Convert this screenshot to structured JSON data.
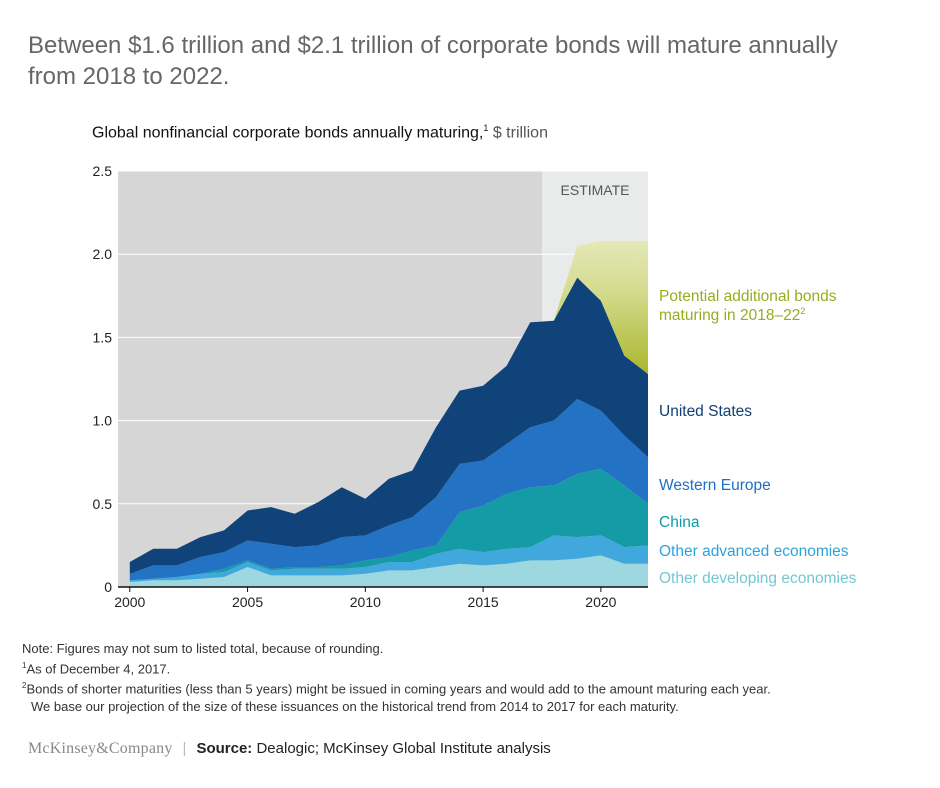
{
  "headline": "Between $1.6 trillion and $2.1 trillion of corporate bonds will mature annually from 2018 to 2022.",
  "chart_data": {
    "type": "area",
    "title": "Global nonfinancial corporate bonds annually maturing,",
    "title_sup": "1",
    "unit": "$ trillion",
    "xlim": [
      1999.5,
      2022
    ],
    "ylim": [
      0,
      2.5
    ],
    "x": [
      2000,
      2001,
      2002,
      2003,
      2004,
      2005,
      2006,
      2007,
      2008,
      2009,
      2010,
      2011,
      2012,
      2013,
      2014,
      2015,
      2016,
      2017,
      2018,
      2019,
      2020,
      2021,
      2022
    ],
    "y_ticks": [
      "0",
      "0.5",
      "1.0",
      "1.5",
      "2.0",
      "2.5"
    ],
    "x_ticks": [
      {
        "value": 2000,
        "label": "2000"
      },
      {
        "value": 2005,
        "label": "2005"
      },
      {
        "value": 2010,
        "label": "2010"
      },
      {
        "value": 2015,
        "label": "2015"
      },
      {
        "value": 2020,
        "label": "2020"
      }
    ],
    "estimate_region": {
      "start": 2017.5,
      "label": "ESTIMATE"
    },
    "series": [
      {
        "name": "Other developing economies",
        "color": "#9dd8e0",
        "label_color": "#74c6d3",
        "values": [
          0.03,
          0.04,
          0.04,
          0.05,
          0.06,
          0.12,
          0.07,
          0.07,
          0.07,
          0.07,
          0.08,
          0.1,
          0.1,
          0.12,
          0.14,
          0.13,
          0.14,
          0.16,
          0.16,
          0.17,
          0.19,
          0.14,
          0.14
        ]
      },
      {
        "name": "Other advanced economies",
        "color": "#41a8dd",
        "label_color": "#2ea3da",
        "values": [
          0.01,
          0.01,
          0.02,
          0.03,
          0.03,
          0.03,
          0.03,
          0.04,
          0.04,
          0.04,
          0.04,
          0.05,
          0.05,
          0.08,
          0.09,
          0.08,
          0.09,
          0.08,
          0.15,
          0.13,
          0.12,
          0.1,
          0.11
        ]
      },
      {
        "name": "China",
        "color": "#159ba5",
        "label_color": "#119aa5",
        "values": [
          0.0,
          0.0,
          0.0,
          0.0,
          0.02,
          0.01,
          0.01,
          0.01,
          0.01,
          0.02,
          0.04,
          0.03,
          0.07,
          0.05,
          0.22,
          0.28,
          0.33,
          0.36,
          0.3,
          0.38,
          0.4,
          0.37,
          0.25
        ]
      },
      {
        "name": "Western Europe",
        "color": "#2372c3",
        "label_color": "#1f6fc0",
        "values": [
          0.04,
          0.08,
          0.07,
          0.1,
          0.1,
          0.12,
          0.15,
          0.12,
          0.13,
          0.17,
          0.15,
          0.19,
          0.2,
          0.29,
          0.29,
          0.27,
          0.3,
          0.36,
          0.39,
          0.45,
          0.35,
          0.3,
          0.28
        ]
      },
      {
        "name": "United States",
        "color": "#0f4379",
        "label_color": "#0f3f73",
        "values": [
          0.07,
          0.1,
          0.1,
          0.12,
          0.13,
          0.18,
          0.22,
          0.2,
          0.26,
          0.3,
          0.22,
          0.28,
          0.28,
          0.42,
          0.44,
          0.45,
          0.47,
          0.63,
          0.6,
          0.73,
          0.66,
          0.48,
          0.5
        ]
      },
      {
        "name": "Potential additional bonds maturing in 2018–22",
        "name_sup": "2",
        "color": "#b4bf3a",
        "label_color": "#9aab1f",
        "values": [
          null,
          null,
          null,
          null,
          null,
          null,
          null,
          null,
          null,
          null,
          null,
          null,
          null,
          null,
          null,
          null,
          null,
          null,
          0.0,
          0.19,
          0.36,
          0.69,
          0.8
        ]
      }
    ]
  },
  "notes": {
    "note": "Note: Figures may not sum to listed total, because of rounding.",
    "footnote1_mark": "1",
    "footnote1": "As of December 4, 2017.",
    "footnote2_mark": "2",
    "footnote2_line1": "Bonds of shorter maturities (less than 5 years) might be issued in coming years and would add to the amount maturing each year.",
    "footnote2_line2": "We base our projection of the size of these issuances on the historical trend from 2014 to 2017 for each maturity."
  },
  "footer": {
    "logo": "McKinsey&Company",
    "source_label": "Source:",
    "source_text": "Dealogic; McKinsey Global Institute analysis"
  }
}
